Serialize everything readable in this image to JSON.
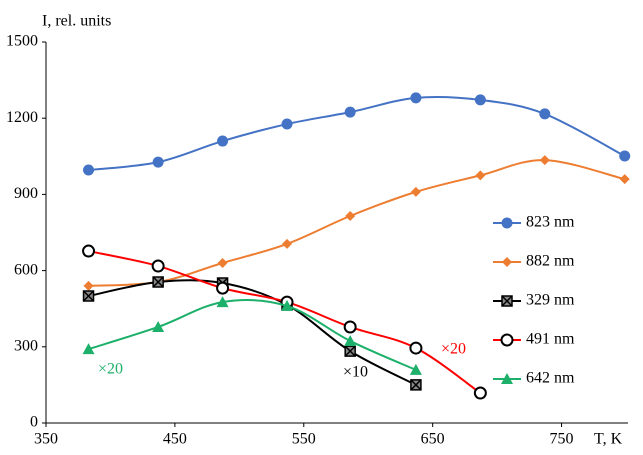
{
  "chart_data": {
    "type": "line",
    "y_label": "I, rel. units",
    "x_label": "T, K",
    "x": [
      383,
      437,
      487,
      537,
      586,
      637,
      687,
      737,
      799
    ],
    "xlim": [
      350,
      800
    ],
    "xticks": [
      350,
      450,
      550,
      650,
      750
    ],
    "ylim": [
      0,
      1500
    ],
    "yticks": [
      0,
      300,
      600,
      900,
      1200,
      1500
    ],
    "grid": false,
    "smooth": true,
    "series": [
      {
        "name": "823 nm",
        "color": "#4472c4",
        "marker": "circle",
        "values": [
          996,
          1027,
          1110,
          1177,
          1224,
          1280,
          1272,
          1217,
          1051
        ]
      },
      {
        "name": "882 nm",
        "color": "#ed7d31",
        "marker": "diamond",
        "values": [
          540,
          555,
          630,
          705,
          815,
          910,
          975,
          1035,
          960
        ]
      },
      {
        "name": "329 nm",
        "color": "#000000",
        "marker": "xsquare",
        "values": [
          500,
          555,
          551,
          465,
          283,
          150,
          null,
          null,
          null
        ]
      },
      {
        "name": "491 nm",
        "color": "#ff0000",
        "marker": "open-circle",
        "values": [
          677,
          618,
          531,
          476,
          378,
          295,
          118,
          null,
          null
        ]
      },
      {
        "name": "642 nm",
        "color": "#1db06a",
        "marker": "triangle",
        "values": [
          291,
          378,
          476,
          461,
          323,
          209,
          null,
          null,
          null
        ]
      }
    ],
    "annotations": [
      {
        "text": "×20",
        "color": "#1db06a"
      },
      {
        "text": "×10",
        "color": "#000000"
      },
      {
        "text": "×20",
        "color": "#ff0000"
      }
    ]
  }
}
